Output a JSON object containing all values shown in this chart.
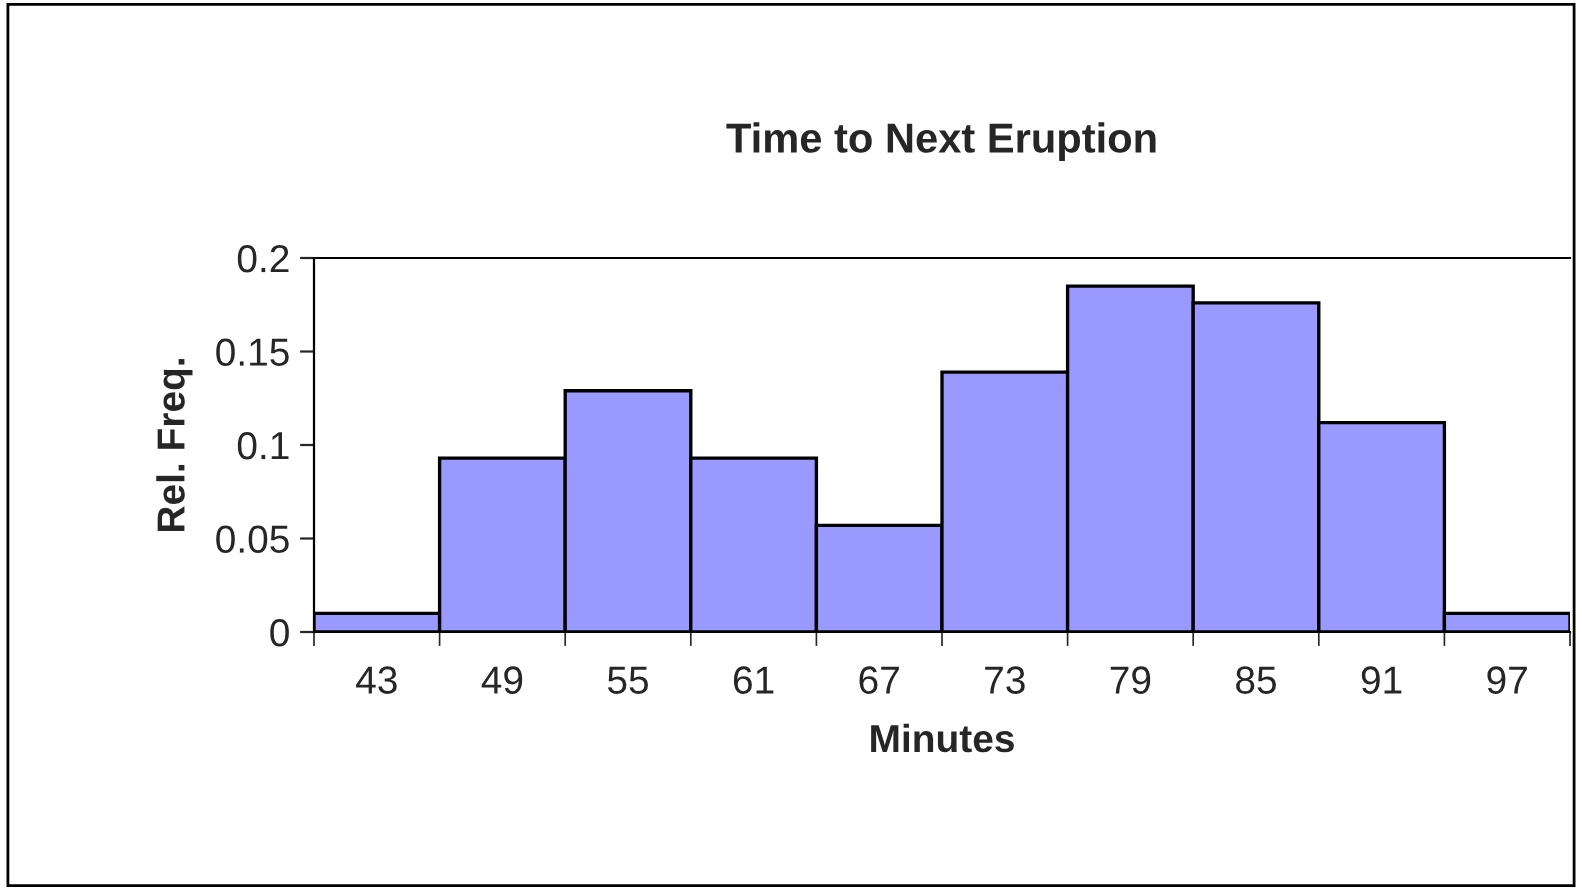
{
  "chart_data": {
    "type": "bar",
    "title": "Time to Next Eruption",
    "xlabel": "Minutes",
    "ylabel": "Rel. Freq.",
    "categories": [
      "43",
      "49",
      "55",
      "61",
      "67",
      "73",
      "79",
      "85",
      "91",
      "97"
    ],
    "values": [
      0.01,
      0.093,
      0.129,
      0.093,
      0.057,
      0.139,
      0.185,
      0.176,
      0.112,
      0.01
    ],
    "color": "#9999ff",
    "ylim": [
      0,
      0.2
    ],
    "yticks": [
      0,
      0.05,
      0.1,
      0.15,
      0.2
    ],
    "grid": false,
    "legend": false
  }
}
